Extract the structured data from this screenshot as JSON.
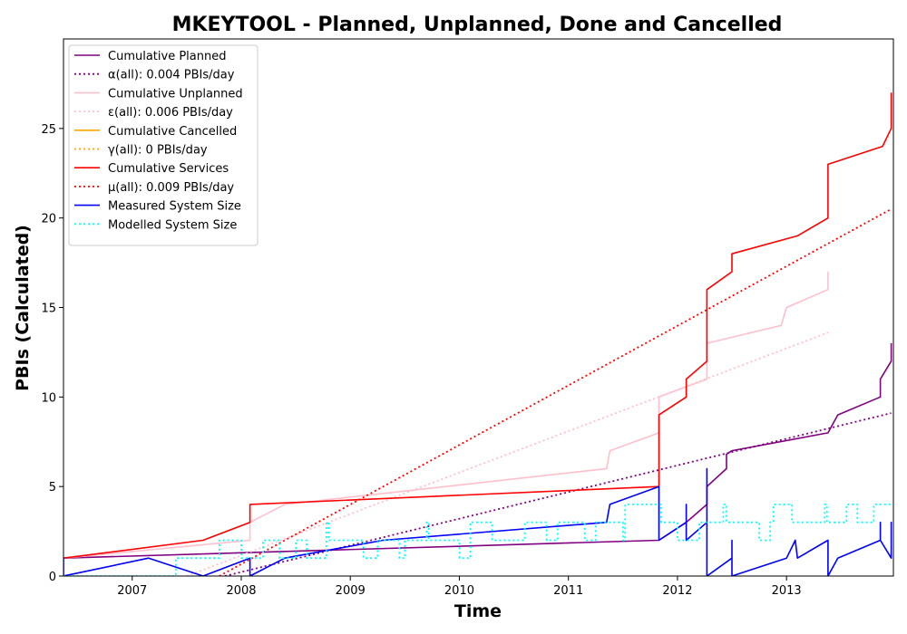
{
  "chart_data": {
    "type": "line",
    "title": "MKEYTOOL - Planned, Unplanned, Done  and Cancelled",
    "xlabel": "Time",
    "ylabel": "PBIs (Calculated)",
    "xlim": [
      2006.37,
      2013.98
    ],
    "ylim": [
      0,
      30
    ],
    "xticks": [
      2007,
      2008,
      2009,
      2010,
      2011,
      2012,
      2013
    ],
    "xtick_labels": [
      "2007",
      "2008",
      "2009",
      "2010",
      "2011",
      "2012",
      "2013"
    ],
    "yticks": [
      0,
      5,
      10,
      15,
      20,
      25
    ],
    "ytick_labels": [
      "0",
      "5",
      "10",
      "15",
      "20",
      "25"
    ],
    "grid": false,
    "legend_position": "top-left",
    "series": [
      {
        "name": "Cumulative Planned",
        "color": "#800080",
        "style": "solid",
        "x": [
          2006.37,
          2011.83,
          2012.08,
          2012.27,
          2012.27,
          2012.45,
          2012.45,
          2012.5,
          2013.38,
          2013.47,
          2013.86,
          2013.86,
          2013.96,
          2013.96
        ],
        "y": [
          1,
          2,
          3,
          4,
          5,
          6,
          6.8,
          7,
          8,
          9,
          10,
          11,
          12,
          13
        ]
      },
      {
        "name": "α(all): 0.004 PBIs/day",
        "color": "#800080",
        "style": "dotted",
        "x": [
          2007.85,
          2013.96
        ],
        "y": [
          0,
          9.1
        ]
      },
      {
        "name": "Cumulative Unplanned",
        "color": "#ffc0cb",
        "style": "solid",
        "x": [
          2006.37,
          2008.08,
          2008.08,
          2008.4,
          2011.35,
          2011.38,
          2011.83,
          2011.83,
          2012.27,
          2012.27,
          2012.95,
          2013.0,
          2013.38,
          2013.38
        ],
        "y": [
          1,
          2,
          3,
          4,
          6,
          7,
          8,
          10,
          11,
          13,
          14,
          15,
          16,
          17
        ]
      },
      {
        "name": "ε(all): 0.006 PBIs/day",
        "color": "#ffc0cb",
        "style": "dotted",
        "x": [
          2007.5,
          2013.38
        ],
        "y": [
          0,
          13.6
        ]
      },
      {
        "name": "Cumulative Cancelled",
        "color": "#ffa500",
        "style": "solid",
        "x": [],
        "y": []
      },
      {
        "name": "γ(all): 0 PBIs/day",
        "color": "#ffa500",
        "style": "dotted",
        "x": [],
        "y": []
      },
      {
        "name": "Cumulative Services",
        "color": "#ff0000",
        "style": "solid",
        "x": [
          2006.37,
          2007.65,
          2008.08,
          2008.08,
          2011.83,
          2011.83,
          2012.08,
          2012.08,
          2012.27,
          2012.27,
          2012.5,
          2012.5,
          2013.1,
          2013.38,
          2013.38,
          2013.88,
          2013.96,
          2013.96
        ],
        "y": [
          1,
          2,
          3,
          4,
          5,
          9,
          10,
          11,
          12,
          16,
          17,
          18,
          19,
          20,
          23,
          24,
          25,
          27
        ]
      },
      {
        "name": "μ(all): 0.009 PBIs/day",
        "color": "#ff0000",
        "style": "dotted",
        "x": [
          2007.8,
          2013.96
        ],
        "y": [
          0,
          20.5
        ]
      },
      {
        "name": "Measured System Size",
        "color": "#0000ff",
        "style": "solid",
        "x": [
          2006.37,
          2006.37,
          2006.37,
          2007.15,
          2007.65,
          2008.08,
          2008.08,
          2008.08,
          2008.4,
          2009.3,
          2011.35,
          2011.38,
          2011.83,
          2011.83,
          2011.83,
          2011.83,
          2012.08,
          2012.08,
          2012.08,
          2012.27,
          2012.27,
          2012.27,
          2012.27,
          2012.27,
          2012.5,
          2012.5,
          2012.5,
          2012.5,
          2013.0,
          2013.08,
          2013.1,
          2013.38,
          2013.38,
          2013.38,
          2013.47,
          2013.86,
          2013.86,
          2013.86,
          2013.96,
          2013.96,
          2013.96
        ],
        "y": [
          0,
          1,
          0,
          1,
          0,
          1,
          1,
          0,
          1,
          2,
          3,
          4,
          5,
          4,
          5,
          2,
          3,
          4,
          2,
          3,
          6,
          5,
          6,
          0,
          1,
          2,
          1,
          0,
          1,
          2,
          1,
          2,
          1,
          0,
          1,
          2,
          3,
          2,
          1,
          3,
          1
        ]
      },
      {
        "name": "Modelled System Size",
        "color": "#00ffff",
        "style": "dotted",
        "x": [
          2006.37,
          2007.4,
          2007.4,
          2007.8,
          2007.8,
          2008.0,
          2008.0,
          2008.2,
          2008.2,
          2008.35,
          2008.35,
          2008.5,
          2008.5,
          2008.6,
          2008.6,
          2008.78,
          2008.78,
          2008.8,
          2008.8,
          2009.12,
          2009.12,
          2009.25,
          2009.25,
          2009.45,
          2009.45,
          2009.5,
          2009.5,
          2009.7,
          2009.7,
          2009.72,
          2009.72,
          2010.0,
          2010.0,
          2010.1,
          2010.1,
          2010.3,
          2010.3,
          2010.6,
          2010.6,
          2010.8,
          2010.8,
          2010.9,
          2010.9,
          2011.15,
          2011.15,
          2011.25,
          2011.25,
          2011.5,
          2011.5,
          2011.52,
          2011.52,
          2011.85,
          2011.85,
          2012.0,
          2012.0,
          2012.2,
          2012.2,
          2012.42,
          2012.42,
          2012.45,
          2012.45,
          2012.75,
          2012.75,
          2012.85,
          2012.85,
          2012.88,
          2012.88,
          2013.05,
          2013.05,
          2013.35,
          2013.35,
          2013.37,
          2013.37,
          2013.55,
          2013.55,
          2013.65,
          2013.65,
          2013.8,
          2013.8,
          2013.96
        ],
        "y": [
          0,
          0,
          1,
          1,
          2,
          2,
          1,
          1,
          2,
          2,
          1,
          1,
          2,
          2,
          1,
          1,
          3,
          3,
          2,
          2,
          1,
          1,
          2,
          2,
          1,
          1,
          2,
          2,
          3,
          3,
          2,
          2,
          1,
          1,
          3,
          3,
          2,
          2,
          3,
          3,
          2,
          2,
          3,
          3,
          2,
          2,
          3,
          3,
          2,
          2,
          4,
          4,
          3,
          3,
          2,
          2,
          3,
          3,
          4,
          4,
          3,
          3,
          2,
          2,
          3,
          3,
          4,
          4,
          3,
          3,
          4,
          4,
          3,
          3,
          4,
          4,
          3,
          3,
          4,
          4
        ]
      }
    ]
  }
}
